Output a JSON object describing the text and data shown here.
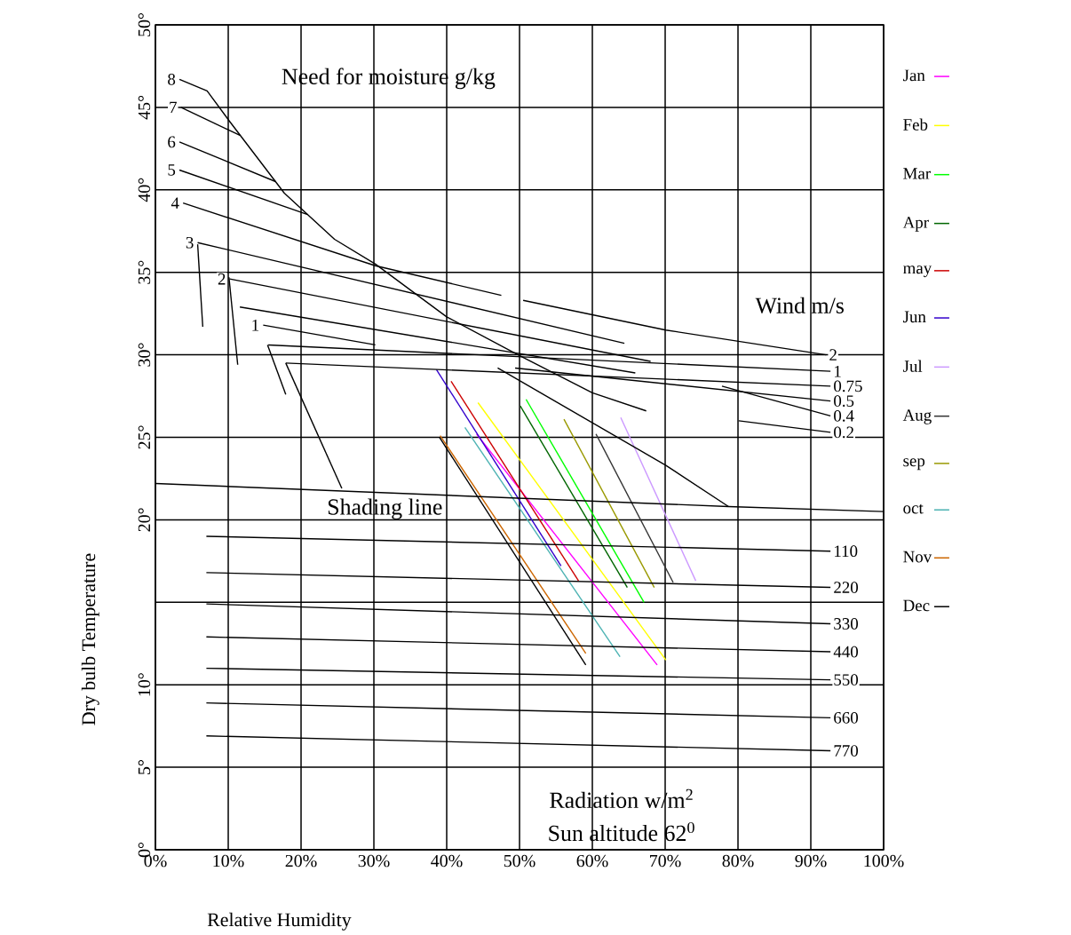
{
  "chart_data": {
    "type": "line",
    "xlabel": "Relative Humidity",
    "ylabel": "Dry bulb Temperature",
    "xlim": [
      0,
      100
    ],
    "ylim": [
      0,
      50
    ],
    "xticks": [
      {
        "value": 0,
        "label": "0%"
      },
      {
        "value": 10,
        "label": "10%"
      },
      {
        "value": 20,
        "label": "20%"
      },
      {
        "value": 30,
        "label": "30%"
      },
      {
        "value": 40,
        "label": "40%"
      },
      {
        "value": 50,
        "label": "50%"
      },
      {
        "value": 60,
        "label": "60%"
      },
      {
        "value": 70,
        "label": "70%"
      },
      {
        "value": 80,
        "label": "80%"
      },
      {
        "value": 90,
        "label": "90%"
      },
      {
        "value": 100,
        "label": "100%"
      }
    ],
    "yticks": [
      {
        "value": 0,
        "label": "0°"
      },
      {
        "value": 5,
        "label": "5°"
      },
      {
        "value": 10,
        "label": "10°"
      },
      {
        "value": 15,
        "label": null
      },
      {
        "value": 20,
        "label": "20°"
      },
      {
        "value": 25,
        "label": "25°"
      },
      {
        "value": 30,
        "label": "30°"
      },
      {
        "value": 35,
        "label": "35°"
      },
      {
        "value": 40,
        "label": "40°"
      },
      {
        "value": 45,
        "label": "45°"
      },
      {
        "value": 50,
        "label": "50°"
      }
    ],
    "grid": true,
    "legend": "right",
    "series": [
      {
        "name": "Jan",
        "color": "#ff00ff",
        "x": [
          44.1,
          68.9
        ],
        "values": [
          25.2,
          11.2
        ]
      },
      {
        "name": "Feb",
        "color": "#ffff00",
        "x": [
          44.3,
          70.1
        ],
        "values": [
          27.1,
          11.5
        ]
      },
      {
        "name": "Mar",
        "color": "#00ff00",
        "x": [
          50.9,
          67.1
        ],
        "values": [
          27.3,
          15.0
        ]
      },
      {
        "name": "Apr",
        "color": "#006600",
        "x": [
          50.1,
          64.8
        ],
        "values": [
          26.9,
          15.9
        ]
      },
      {
        "name": "may",
        "color": "#cc0000",
        "x": [
          40.6,
          58.1
        ],
        "values": [
          28.4,
          16.3
        ]
      },
      {
        "name": "Jun",
        "color": "#3300cc",
        "x": [
          38.6,
          55.7
        ],
        "values": [
          29.1,
          17.2
        ]
      },
      {
        "name": "Jul",
        "color": "#cc99ff",
        "x": [
          63.9,
          74.2
        ],
        "values": [
          26.2,
          16.3
        ]
      },
      {
        "name": "Aug",
        "color": "#333333",
        "x": [
          60.5,
          71.1
        ],
        "values": [
          25.2,
          16.2
        ]
      },
      {
        "name": "sep",
        "color": "#999900",
        "x": [
          56.1,
          68.5
        ],
        "values": [
          26.1,
          15.9
        ]
      },
      {
        "name": "oct",
        "color": "#4db3b3",
        "x": [
          42.5,
          63.8
        ],
        "values": [
          25.6,
          11.7
        ]
      },
      {
        "name": "Nov",
        "color": "#cc6600",
        "x": [
          39.1,
          59.1
        ],
        "values": [
          25.1,
          11.9
        ]
      },
      {
        "name": "Dec",
        "color": "#000000",
        "x": [
          39.0,
          59.1
        ],
        "values": [
          25.0,
          11.2
        ]
      },
      {
        "name": "8",
        "color": "#000000",
        "x": [
          3.3,
          7.1,
          10.1,
          17.7,
          24.6,
          30.2,
          40.0,
          49.8,
          60.0,
          67.4
        ],
        "values": [
          46.7,
          46.0,
          44.2,
          39.8,
          37.0,
          35.5,
          32.3,
          30.0,
          27.7,
          26.6
        ]
      },
      {
        "color": "#000000",
        "x": [
          47.0,
          70.1,
          78.7
        ],
        "values": [
          29.2,
          23.3,
          20.8
        ]
      },
      {
        "name": "7",
        "color": "#000000",
        "x": [
          3.5,
          11.6
        ],
        "values": [
          45.0,
          43.3
        ]
      },
      {
        "name": "6",
        "color": "#000000",
        "x": [
          3.3,
          16.5
        ],
        "values": [
          42.9,
          40.5
        ]
      },
      {
        "name": "5",
        "color": "#000000",
        "x": [
          3.3,
          20.9
        ],
        "values": [
          41.2,
          38.5
        ]
      },
      {
        "name": "4",
        "color": "#000000",
        "x": [
          3.8,
          30.2,
          47.5
        ],
        "values": [
          39.2,
          35.4,
          33.6
        ]
      },
      {
        "name": "2",
        "color": "#000000",
        "x": [
          50.5,
          70.1,
          92.1
        ],
        "values": [
          33.3,
          31.5,
          30.0
        ]
      },
      {
        "name": "3",
        "color": "#000000",
        "x": [
          5.8,
          64.4
        ],
        "values": [
          36.8,
          30.7
        ]
      },
      {
        "name": "2",
        "color": "#000000",
        "x": [
          10.2,
          68.0
        ],
        "values": [
          34.6,
          29.6
        ]
      },
      {
        "color": "#000000",
        "x": [
          11.6,
          65.9
        ],
        "values": [
          32.9,
          28.9
        ]
      },
      {
        "name": "1",
        "color": "#000000",
        "x": [
          14.8,
          30.2
        ],
        "values": [
          31.8,
          30.6
        ]
      },
      {
        "name": "1",
        "color": "#000000",
        "x": [
          15.5,
          92.7
        ],
        "values": [
          30.6,
          29.0
        ]
      },
      {
        "name": "0.75",
        "color": "#000000",
        "x": [
          17.9,
          92.7
        ],
        "values": [
          29.5,
          28.1
        ]
      },
      {
        "name": "0.5",
        "color": "#000000",
        "x": [
          49.4,
          92.7
        ],
        "values": [
          29.2,
          27.2
        ]
      },
      {
        "name": "0.4",
        "color": "#000000",
        "x": [
          77.8,
          92.7
        ],
        "values": [
          28.1,
          26.3
        ]
      },
      {
        "name": "0.2",
        "color": "#000000",
        "x": [
          80.1,
          92.7
        ],
        "values": [
          26.0,
          25.3
        ]
      },
      {
        "color": "#000000",
        "x": [
          5.8,
          6.5
        ],
        "values": [
          36.7,
          31.7
        ]
      },
      {
        "color": "#000000",
        "x": [
          10.1,
          11.3
        ],
        "values": [
          34.7,
          29.4
        ]
      },
      {
        "color": "#000000",
        "x": [
          15.4,
          17.9
        ],
        "values": [
          30.6,
          27.6
        ]
      },
      {
        "color": "#000000",
        "x": [
          17.9,
          25.6
        ],
        "values": [
          29.5,
          21.9
        ]
      },
      {
        "color": "#000000",
        "x": [
          0,
          78.7,
          100
        ],
        "values": [
          22.2,
          20.8,
          20.5
        ]
      },
      {
        "name": "110",
        "color": "#000000",
        "x": [
          7.0,
          92.7
        ],
        "values": [
          19.0,
          18.1
        ]
      },
      {
        "name": "220",
        "color": "#000000",
        "x": [
          7.0,
          92.7
        ],
        "values": [
          16.8,
          15.9
        ]
      },
      {
        "name": "330",
        "color": "#000000",
        "x": [
          7.0,
          92.7
        ],
        "values": [
          14.9,
          13.7
        ]
      },
      {
        "name": "440",
        "color": "#000000",
        "x": [
          7.0,
          92.7
        ],
        "values": [
          12.9,
          12.0
        ]
      },
      {
        "name": "550",
        "color": "#000000",
        "x": [
          7.0,
          92.7
        ],
        "values": [
          11.0,
          10.3
        ]
      },
      {
        "name": "660",
        "color": "#000000",
        "x": [
          7.0,
          92.7
        ],
        "values": [
          8.9,
          8.0
        ]
      },
      {
        "name": "770",
        "color": "#000000",
        "x": [
          7.0,
          92.7
        ],
        "values": [
          6.9,
          6.0
        ]
      }
    ],
    "annotations": [
      "Need for moisture g/kg",
      "Wind m/s",
      "Shading line",
      "Radiation w/m$^{2}$",
      "Sun altitude 62$^{0}$"
    ]
  }
}
